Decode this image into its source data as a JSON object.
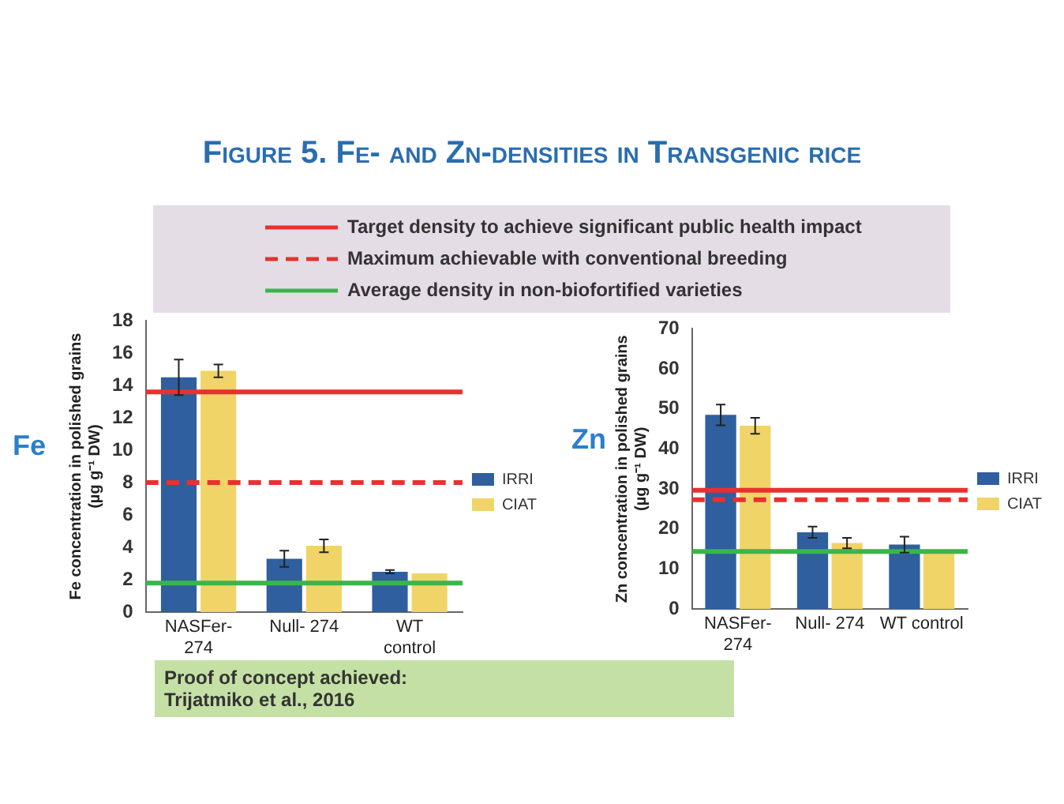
{
  "chart_data": [
    {
      "type": "bar",
      "title": "Figure 5. Fe- and Zn-densities in Transgenic rice",
      "ylabel": "Fe concentration in polished grains\n(µg g⁻¹ DW)",
      "categories": [
        "NASFer-274",
        "Null- 274",
        "WT control"
      ],
      "series": [
        {
          "name": "IRRI",
          "color": "#2f5f9e",
          "values": [
            14.5,
            3.3,
            2.5
          ],
          "errors": [
            1.1,
            0.5,
            0.1
          ]
        },
        {
          "name": "CIAT",
          "color": "#f0d468",
          "values": [
            14.9,
            4.1,
            2.4
          ],
          "errors": [
            0.4,
            0.4,
            null
          ]
        }
      ],
      "ylim": [
        0,
        18
      ],
      "yticks": [
        0,
        2,
        4,
        6,
        8,
        10,
        12,
        14,
        16,
        18
      ],
      "grid": false,
      "legend": "right",
      "ref_lines": [
        {
          "axis": "y",
          "value": 13.6,
          "label": "Target density to achieve significant public health impact",
          "color": "#e8312f",
          "line_style": "solid"
        },
        {
          "axis": "y",
          "value": 8.0,
          "label": "Maximum achievable with conventional breeding",
          "color": "#e8312f",
          "line_style": "dashed"
        },
        {
          "axis": "y",
          "value": 1.8,
          "label": "Average density in non-biofortified varieties",
          "color": "#3bb54a",
          "line_style": "solid"
        }
      ],
      "annotations": [
        "Fe",
        "Proof of concept achieved:\nTrijatmiko et al., 2016"
      ]
    },
    {
      "type": "bar",
      "ylabel": "Zn concentration in polished grains\n(µg g⁻¹ DW)",
      "categories": [
        "NASFer-274",
        "Null- 274",
        "WT control"
      ],
      "series": [
        {
          "name": "IRRI",
          "color": "#2f5f9e",
          "values": [
            48.5,
            19.2,
            16.1
          ],
          "errors": [
            2.6,
            1.4,
            2.0
          ]
        },
        {
          "name": "CIAT",
          "color": "#f0d468",
          "values": [
            45.8,
            16.5,
            14.0
          ],
          "errors": [
            2.0,
            1.3,
            null
          ]
        }
      ],
      "ylim": [
        0,
        70
      ],
      "yticks": [
        0,
        10,
        20,
        30,
        40,
        50,
        60,
        70
      ],
      "grid": false,
      "legend": "right",
      "ref_lines": [
        {
          "axis": "y",
          "value": 29.7,
          "color": "#e8312f",
          "line_style": "solid"
        },
        {
          "axis": "y",
          "value": 27.3,
          "color": "#e8312f",
          "line_style": "dashed"
        },
        {
          "axis": "y",
          "value": 14.4,
          "color": "#3bb54a",
          "line_style": "solid"
        }
      ],
      "annotations": [
        "Zn"
      ]
    }
  ]
}
